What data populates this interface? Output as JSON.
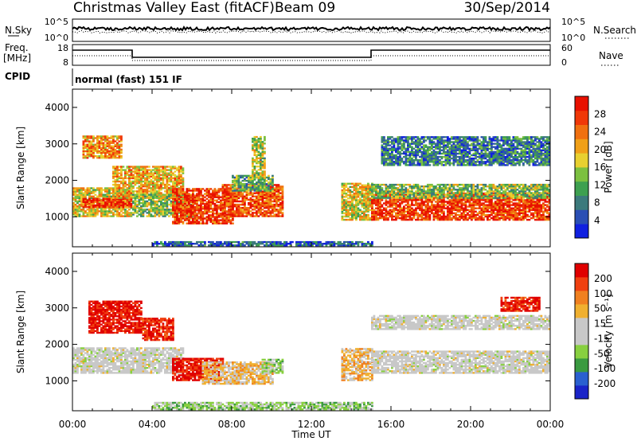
{
  "header": {
    "title": "Christmas Valley East (fitACF)",
    "beam": "Beam 09",
    "date": "30/Sep/2014"
  },
  "panels": {
    "nsky": {
      "label": "N.Sky",
      "left_ticks": [
        "10^5",
        "10^0"
      ],
      "right_ticks": [
        "10^5",
        "10^0"
      ],
      "right_label": "N.Search"
    },
    "freq": {
      "label_line1": "Freq.",
      "label_line2": "[MHz]",
      "left_ticks": [
        "18",
        "8"
      ],
      "right_ticks": [
        "60",
        "0"
      ],
      "right_label": "Nave"
    },
    "cpid": {
      "label": "CPID",
      "text": "normal (fast) 151 IF"
    }
  },
  "colors": {
    "power": [
      "#1020e0",
      "#2a4fb4",
      "#3c7a7c",
      "#3ea050",
      "#7cc040",
      "#e8d030",
      "#f0a018",
      "#f07010",
      "#f03808",
      "#e81000"
    ],
    "velocity": [
      "#1a24c8",
      "#2a60d0",
      "#3a9a40",
      "#88d040",
      "#c8c8c8",
      "#c8c8c8",
      "#f0b030",
      "#f08020",
      "#f04010",
      "#e00000"
    ]
  },
  "chart_data": [
    {
      "type": "heatmap",
      "name": "power",
      "ylabel": "Slant Range [km]",
      "xlabel": "",
      "xlim": [
        0,
        24
      ],
      "ylim": [
        180,
        4500
      ],
      "yticks": [
        "1000",
        "2000",
        "3000",
        "4000"
      ],
      "colorbar": {
        "label": "Power [dB]",
        "ticks": [
          "28",
          "24",
          "20",
          "16",
          "12",
          "8",
          "4"
        ],
        "range": [
          0,
          32
        ]
      },
      "regions": [
        {
          "t": [
            0.0,
            3.0
          ],
          "r": [
            1000,
            1800
          ],
          "value": 18
        },
        {
          "t": [
            0.5,
            3.0
          ],
          "r": [
            1250,
            1500
          ],
          "value": 28
        },
        {
          "t": [
            0.5,
            2.5
          ],
          "r": [
            2600,
            3200
          ],
          "value": 22
        },
        {
          "t": [
            2.0,
            5.5
          ],
          "r": [
            1500,
            2400
          ],
          "value": 20
        },
        {
          "t": [
            3.0,
            6.0
          ],
          "r": [
            1000,
            1600
          ],
          "value": 14
        },
        {
          "t": [
            5.0,
            8.0
          ],
          "r": [
            800,
            1750
          ],
          "value": 28
        },
        {
          "t": [
            7.5,
            10.5
          ],
          "r": [
            1000,
            1900
          ],
          "value": 26
        },
        {
          "t": [
            8.0,
            10.0
          ],
          "r": [
            1700,
            2150
          ],
          "value": 12
        },
        {
          "t": [
            9.0,
            9.6
          ],
          "r": [
            2000,
            3200
          ],
          "value": 16
        },
        {
          "t": [
            13.5,
            15.0
          ],
          "r": [
            900,
            1900
          ],
          "value": 18
        },
        {
          "t": [
            15.0,
            24.0
          ],
          "r": [
            900,
            1650
          ],
          "value": 28
        },
        {
          "t": [
            15.0,
            24.0
          ],
          "r": [
            1500,
            1900
          ],
          "value": 14
        },
        {
          "t": [
            15.5,
            24.0
          ],
          "r": [
            2400,
            3200
          ],
          "value": 8
        },
        {
          "t": [
            4.0,
            15.0
          ],
          "r": [
            200,
            300
          ],
          "value": 6
        }
      ]
    },
    {
      "type": "heatmap",
      "name": "velocity",
      "ylabel": "Slant Range [km]",
      "xlabel": "Time UT",
      "xlim": [
        0,
        24
      ],
      "ylim": [
        180,
        4500
      ],
      "yticks": [
        "1000",
        "2000",
        "3000",
        "4000"
      ],
      "xticks": [
        "00:00",
        "04:00",
        "08:00",
        "12:00",
        "16:00",
        "20:00",
        "00:00"
      ],
      "colorbar": {
        "label": "Velocity [m s⁻¹]",
        "ticks": [
          "200",
          "100",
          "50",
          "15",
          "-15",
          "-50",
          "-100",
          "-200"
        ],
        "range": [
          -250,
          250
        ]
      },
      "regions": [
        {
          "t": [
            0.0,
            5.5
          ],
          "r": [
            1200,
            1900
          ],
          "value": 0
        },
        {
          "t": [
            0.8,
            3.5
          ],
          "r": [
            2300,
            3200
          ],
          "value": 220
        },
        {
          "t": [
            3.5,
            5.0
          ],
          "r": [
            2100,
            2700
          ],
          "value": 200
        },
        {
          "t": [
            5.0,
            7.5
          ],
          "r": [
            1000,
            1600
          ],
          "value": 220
        },
        {
          "t": [
            6.5,
            10.0
          ],
          "r": [
            900,
            1500
          ],
          "value": 60
        },
        {
          "t": [
            9.5,
            10.5
          ],
          "r": [
            1200,
            1600
          ],
          "value": -60
        },
        {
          "t": [
            13.5,
            15.0
          ],
          "r": [
            1000,
            1900
          ],
          "value": 70
        },
        {
          "t": [
            15.0,
            24.0
          ],
          "r": [
            1200,
            1800
          ],
          "value": 0
        },
        {
          "t": [
            15.0,
            24.0
          ],
          "r": [
            2400,
            2800
          ],
          "value": 0
        },
        {
          "t": [
            21.5,
            23.5
          ],
          "r": [
            2900,
            3300
          ],
          "value": 200
        },
        {
          "t": [
            4.0,
            15.0
          ],
          "r": [
            200,
            400
          ],
          "value": -60
        }
      ]
    }
  ]
}
